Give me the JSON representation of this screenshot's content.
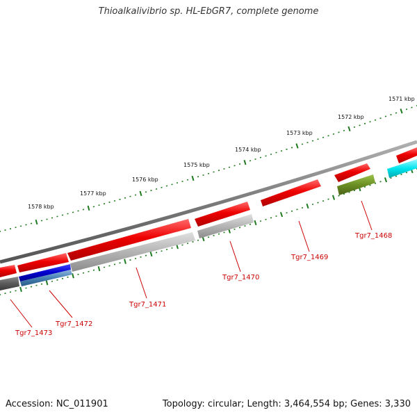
{
  "title": "Thioalkalivibrio sp. HL-EbGR7, complete genome",
  "footer": {
    "accession": "Accession: NC_011901",
    "summary": "Topology: circular; Length: 3,464,554 bp; Genes: 3,330"
  },
  "colors": {
    "backbone": "#808080",
    "ticks": "#1e7a1e",
    "gene_label": "#cc0000",
    "cds_red": "#ee0000",
    "gray": "#b0b0b0",
    "dark_gray": "#555555",
    "blue": "#0000cc",
    "steel_blue": "#4682b4",
    "olive": "#6b8e23",
    "cyan": "#00e5ee"
  },
  "ticks": {
    "labels": [
      "1571 kbp",
      "1572 kbp",
      "1573 kbp",
      "1574 kbp",
      "1575 kbp",
      "1576 kbp",
      "1577 kbp",
      "1578 kbp"
    ]
  },
  "genes": [
    {
      "name": "Tgr7_1468"
    },
    {
      "name": "Tgr7_1469"
    },
    {
      "name": "Tgr7_1470"
    },
    {
      "name": "Tgr7_1471"
    },
    {
      "name": "Tgr7_1472"
    },
    {
      "name": "Tgr7_1473"
    }
  ]
}
